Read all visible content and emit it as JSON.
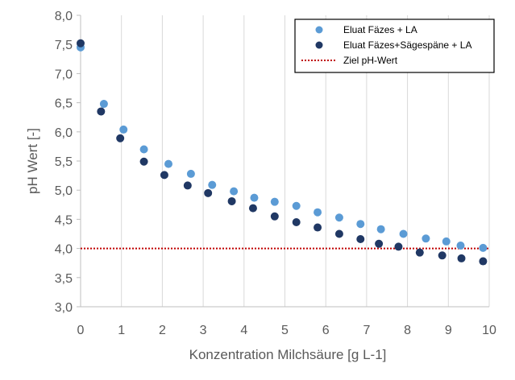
{
  "chart_data": {
    "type": "scatter",
    "title": "",
    "xlabel": "Konzentration Milchsäure [g L-1]",
    "ylabel": "pH Wert [-]",
    "xlim": [
      0,
      10
    ],
    "ylim": [
      3.0,
      8.0
    ],
    "x_ticks": [
      0,
      1,
      2,
      3,
      4,
      5,
      6,
      7,
      8,
      9,
      10
    ],
    "y_ticks": [
      "3,0",
      "3,5",
      "4,0",
      "4,5",
      "5,0",
      "5,5",
      "6,0",
      "6,5",
      "7,0",
      "7,5",
      "8,0"
    ],
    "grid": "vertical",
    "legend_position": "top-right",
    "series": [
      {
        "name": "Eluat Fäzes + LA",
        "color": "#5b9bd5",
        "points": [
          [
            0.0,
            7.45
          ],
          [
            0.57,
            6.48
          ],
          [
            1.05,
            6.04
          ],
          [
            1.55,
            5.7
          ],
          [
            2.15,
            5.45
          ],
          [
            2.7,
            5.28
          ],
          [
            3.22,
            5.09
          ],
          [
            3.75,
            4.98
          ],
          [
            4.25,
            4.87
          ],
          [
            4.75,
            4.8
          ],
          [
            5.28,
            4.73
          ],
          [
            5.8,
            4.62
          ],
          [
            6.33,
            4.53
          ],
          [
            6.85,
            4.42
          ],
          [
            7.35,
            4.33
          ],
          [
            7.9,
            4.25
          ],
          [
            8.45,
            4.17
          ],
          [
            8.95,
            4.12
          ],
          [
            9.3,
            4.05
          ],
          [
            9.85,
            4.01
          ]
        ]
      },
      {
        "name": "Eluat Fäzes+Sägespäne + LA",
        "color": "#203864",
        "points": [
          [
            0.0,
            7.52
          ],
          [
            0.5,
            6.35
          ],
          [
            0.97,
            5.89
          ],
          [
            1.55,
            5.49
          ],
          [
            2.05,
            5.26
          ],
          [
            2.62,
            5.08
          ],
          [
            3.12,
            4.95
          ],
          [
            3.7,
            4.81
          ],
          [
            4.22,
            4.69
          ],
          [
            4.75,
            4.55
          ],
          [
            5.28,
            4.45
          ],
          [
            5.8,
            4.36
          ],
          [
            6.33,
            4.25
          ],
          [
            6.85,
            4.16
          ],
          [
            7.3,
            4.08
          ],
          [
            7.78,
            4.03
          ],
          [
            8.3,
            3.93
          ],
          [
            8.85,
            3.88
          ],
          [
            9.32,
            3.83
          ],
          [
            9.85,
            3.78
          ]
        ]
      }
    ],
    "reference_line": {
      "name": "Ziel pH-Wert",
      "y": 4.0,
      "color": "#c00000",
      "style": "dotted"
    }
  }
}
